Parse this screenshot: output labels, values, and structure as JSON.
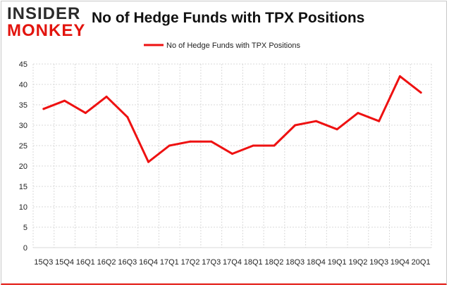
{
  "logo": {
    "line1": "INSIDER",
    "line2": "MONKEY"
  },
  "chart_data": {
    "type": "line",
    "title": "No of Hedge Funds with TPX Positions",
    "xlabel": "",
    "ylabel": "",
    "ylim": [
      0,
      45
    ],
    "yticks": [
      0,
      5,
      10,
      15,
      20,
      25,
      30,
      35,
      40,
      45
    ],
    "grid": true,
    "legend_position": "top-center",
    "categories": [
      "15Q3",
      "15Q4",
      "16Q1",
      "16Q2",
      "16Q3",
      "16Q4",
      "17Q1",
      "17Q2",
      "17Q3",
      "17Q4",
      "18Q1",
      "18Q2",
      "18Q3",
      "18Q4",
      "19Q1",
      "19Q2",
      "19Q3",
      "19Q4",
      "20Q1"
    ],
    "series": [
      {
        "name": "No of Hedge Funds with TPX Positions",
        "color": "#ee1111",
        "values": [
          34,
          36,
          33,
          37,
          32,
          21,
          25,
          26,
          26,
          23,
          25,
          25,
          30,
          31,
          29,
          33,
          31,
          42,
          38
        ]
      }
    ]
  }
}
